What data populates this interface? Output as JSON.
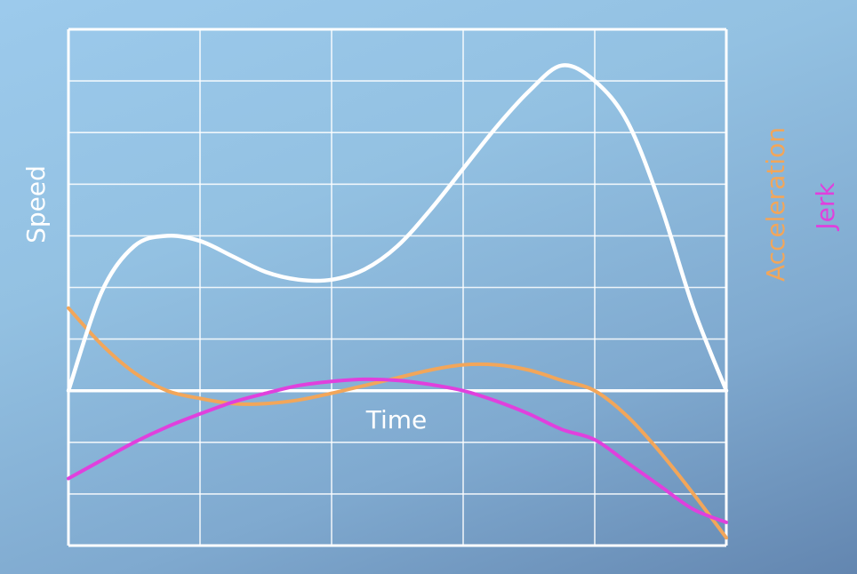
{
  "chart_data": {
    "type": "line",
    "title": "",
    "xlabel": "Time",
    "ylabel_left": "Speed",
    "ylabel_right": [
      "Acceleration",
      "Jerk"
    ],
    "grid": true,
    "xlim": [
      0,
      10
    ],
    "ylim": [
      -3,
      7
    ],
    "x_grid_lines": [
      0,
      2,
      4,
      6,
      8,
      10
    ],
    "y_grid_lines": [
      -3,
      -2,
      -1,
      0,
      1,
      2,
      3,
      4,
      5,
      6,
      7
    ],
    "series": [
      {
        "name": "Speed",
        "color": "#ffffff",
        "x": [
          0,
          0.5,
          1,
          1.5,
          2,
          2.5,
          3,
          3.5,
          4,
          4.5,
          5,
          5.5,
          6,
          6.5,
          7,
          7.5,
          8,
          8.5,
          9,
          9.5,
          10
        ],
        "y": [
          0,
          1.9,
          2.8,
          3.0,
          2.9,
          2.6,
          2.3,
          2.15,
          2.15,
          2.35,
          2.8,
          3.5,
          4.3,
          5.1,
          5.8,
          6.3,
          6.0,
          5.2,
          3.6,
          1.6,
          0
        ]
      },
      {
        "name": "Acceleration",
        "color": "#f2a65a",
        "x": [
          0,
          0.5,
          1,
          1.5,
          2,
          2.5,
          3,
          3.5,
          4,
          4.5,
          5,
          5.5,
          6,
          6.5,
          7,
          7.5,
          8,
          8.5,
          9,
          9.5,
          10
        ],
        "y": [
          1.6,
          0.9,
          0.35,
          0.0,
          -0.15,
          -0.25,
          -0.25,
          -0.18,
          -0.05,
          0.1,
          0.25,
          0.4,
          0.5,
          0.5,
          0.4,
          0.2,
          0.0,
          -0.5,
          -1.2,
          -2.0,
          -2.85
        ]
      },
      {
        "name": "Jerk",
        "color": "#e040dd",
        "x": [
          0,
          0.5,
          1,
          1.5,
          2,
          2.5,
          3,
          3.5,
          4,
          4.5,
          5,
          5.5,
          6,
          6.5,
          7,
          7.5,
          8,
          8.5,
          9,
          9.5,
          10
        ],
        "y": [
          -1.7,
          -1.35,
          -1.0,
          -0.7,
          -0.45,
          -0.22,
          -0.05,
          0.1,
          0.18,
          0.22,
          0.2,
          0.12,
          0.0,
          -0.2,
          -0.45,
          -0.75,
          -0.95,
          -1.4,
          -1.85,
          -2.3,
          -2.55
        ]
      }
    ]
  }
}
